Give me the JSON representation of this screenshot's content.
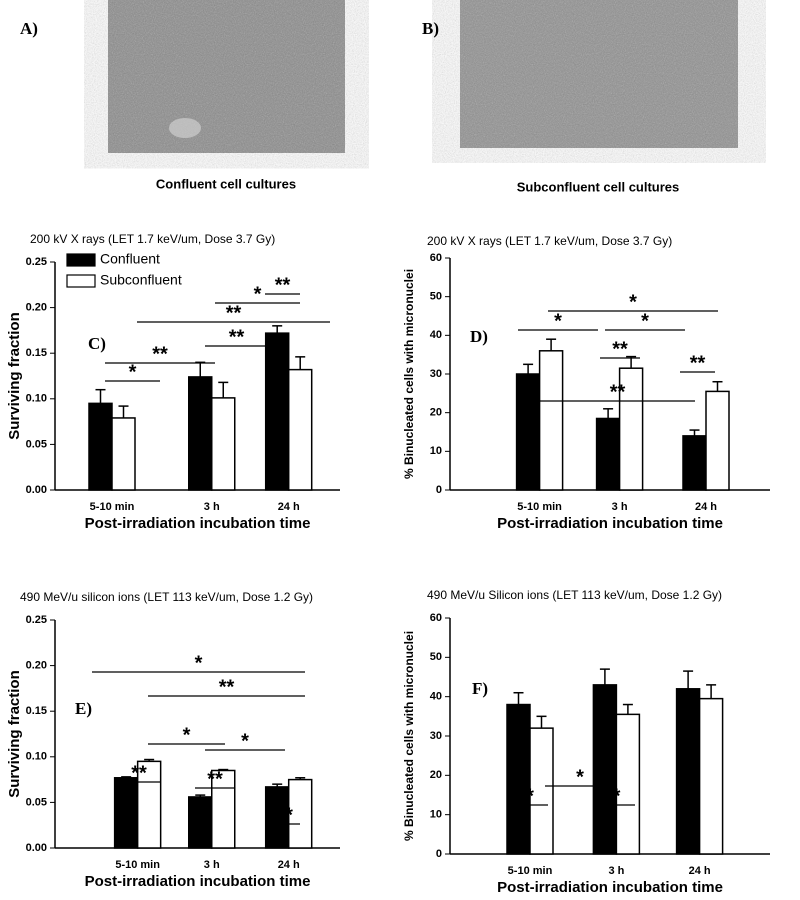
{
  "images": [
    {
      "label": "A)",
      "caption": "Confluent cell cultures"
    },
    {
      "label": "B)",
      "caption": "Subconfluent cell cultures"
    }
  ],
  "chart_data": [
    {
      "type": "bar",
      "panel": "C)",
      "title": "200 kV X rays (LET 1.7 keV/um, Dose 3.7 Gy)",
      "x_label": "Post-irradiation incubation time",
      "y_label": "Surviving fraction",
      "categories": [
        "5-10 min",
        "3 h",
        "24 h"
      ],
      "series": [
        {
          "name": "Confluent",
          "color": "#000000",
          "values": [
            0.095,
            0.124,
            0.172
          ],
          "errors": [
            0.015,
            0.016,
            0.008
          ]
        },
        {
          "name": "Subconfluent",
          "color": "#ffffff",
          "values": [
            0.079,
            0.101,
            0.132
          ],
          "errors": [
            0.013,
            0.017,
            0.014
          ]
        }
      ],
      "ylim": [
        0,
        0.25
      ],
      "yticks": [
        {
          "value": 0,
          "label": "0.00"
        },
        0.05,
        {
          "value": 0.1,
          "label": "0.10"
        },
        0.15,
        {
          "value": 0.2,
          "label": "0.20"
        },
        0.25
      ],
      "legend": "upper left",
      "annotations": [
        "*",
        "**",
        "**",
        "**",
        "*",
        "**"
      ]
    },
    {
      "type": "bar",
      "panel": "D)",
      "title": "200 kV X rays (LET 1.7 keV/um, Dose 3.7 Gy)",
      "x_label": "Post-irradiation incubation time",
      "y_label": "% Binucleated cells with micronuclei",
      "categories": [
        "5-10 min",
        "3 h",
        "24 h"
      ],
      "series": [
        {
          "color": "#000000",
          "values": [
            30,
            18.5,
            14
          ],
          "errors": [
            2.5,
            2.5,
            1.5
          ]
        },
        {
          "color": "#ffffff",
          "values": [
            36,
            31.5,
            25.5
          ],
          "errors": [
            3,
            3,
            2.5
          ]
        }
      ],
      "ylim": [
        0,
        60
      ],
      "yticks": [
        0,
        10,
        20,
        30,
        40,
        50,
        60
      ],
      "annotations": [
        "*",
        "*",
        "*",
        "**",
        "**",
        "**"
      ]
    },
    {
      "type": "bar",
      "panel": "E)",
      "title": "490 MeV/u silicon ions (LET 113 keV/um, Dose 1.2 Gy)",
      "x_label": "Post-irradiation incubation time",
      "y_label": "Surviving fraction",
      "categories": [
        "5-10 min",
        "3 h",
        "24 h"
      ],
      "series": [
        {
          "color": "#000000",
          "values": [
            0.077,
            0.056,
            0.067
          ],
          "errors": [
            0.001,
            0.002,
            0.003
          ]
        },
        {
          "color": "#ffffff",
          "values": [
            0.095,
            0.085,
            0.075
          ],
          "errors": [
            0.002,
            0.001,
            0.002
          ]
        }
      ],
      "ylim": [
        0,
        0.25
      ],
      "yticks": [
        {
          "value": 0,
          "label": "0.00"
        },
        0.05,
        {
          "value": 0.1,
          "label": "0.10"
        },
        0.15,
        {
          "value": 0.2,
          "label": "0.20"
        },
        0.25
      ],
      "annotations": [
        "*",
        "**",
        "*",
        "*",
        "**",
        "**",
        "*"
      ]
    },
    {
      "type": "bar",
      "panel": "F)",
      "title": "490 MeV/u Silicon ions (LET 113 keV/um, Dose 1.2 Gy)",
      "x_label": "Post-irradiation incubation time",
      "y_label": "% Binucleated cells with micronuclei",
      "categories": [
        "5-10 min",
        "3 h",
        "24 h"
      ],
      "series": [
        {
          "color": "#000000",
          "values": [
            38,
            43,
            42
          ],
          "errors": [
            3,
            4,
            4.5
          ]
        },
        {
          "color": "#ffffff",
          "values": [
            32,
            35.5,
            39.5
          ],
          "errors": [
            3,
            2.5,
            3.5
          ]
        }
      ],
      "ylim": [
        0,
        60
      ],
      "yticks": [
        0,
        10,
        20,
        30,
        40,
        50,
        60
      ],
      "annotations": [
        "*",
        "*",
        "*"
      ]
    }
  ]
}
